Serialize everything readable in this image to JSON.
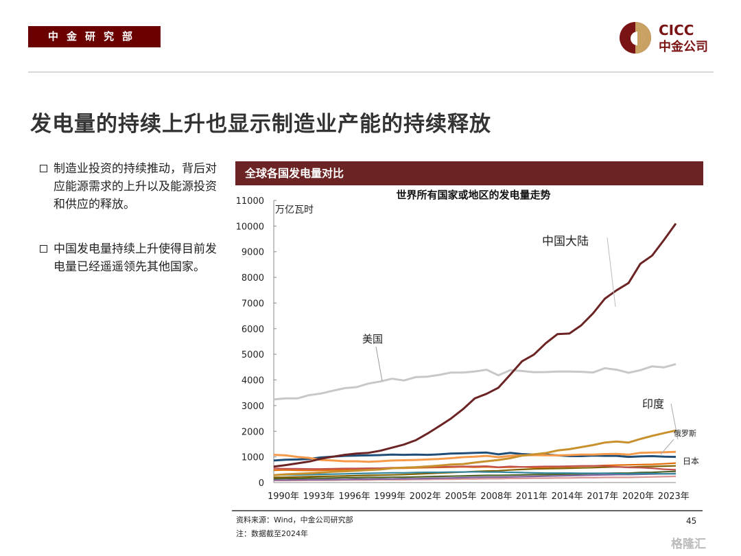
{
  "header": {
    "department": "中金研究部",
    "logo_text_en": "CICC",
    "logo_text_cn": "中金公司"
  },
  "title": "发电量的持续上升也显示制造业产能的持续释放",
  "bullets": [
    {
      "text": "制造业投资的持续推动，背后对应能源需求的上升以及能源投资和供应的释放。"
    },
    {
      "text": "中国发电量持续上升使得目前发电量已经遥遥领先其他国家。"
    }
  ],
  "chart_section_title": "全球各国发电量对比",
  "chart_data": {
    "type": "line",
    "title": "世界所有国家或地区的发电量走势",
    "ylabel": "万亿瓦时",
    "xlabel": "",
    "ylim": [
      0,
      11000
    ],
    "yticks": [
      0,
      1000,
      2000,
      3000,
      4000,
      5000,
      6000,
      7000,
      8000,
      9000,
      10000,
      11000
    ],
    "x": [
      1990,
      1991,
      1992,
      1993,
      1994,
      1995,
      1996,
      1997,
      1998,
      1999,
      2000,
      2001,
      2002,
      2003,
      2004,
      2005,
      2006,
      2007,
      2008,
      2009,
      2010,
      2011,
      2012,
      2013,
      2014,
      2015,
      2016,
      2017,
      2018,
      2019,
      2020,
      2021,
      2022,
      2023,
      2024
    ],
    "xtick_labels": [
      "1990年",
      "1993年",
      "1996年",
      "1999年",
      "2002年",
      "2005年",
      "2008年",
      "2011年",
      "2014年",
      "2017年",
      "2020年",
      "2023年"
    ],
    "grid": false,
    "series": [
      {
        "name": "中国大陆",
        "color": "#6b2323",
        "values": [
          620,
          680,
          750,
          820,
          930,
          1010,
          1080,
          1130,
          1160,
          1240,
          1360,
          1480,
          1650,
          1910,
          2200,
          2500,
          2860,
          3280,
          3460,
          3700,
          4210,
          4730,
          4990,
          5430,
          5790,
          5810,
          6130,
          6600,
          7170,
          7500,
          7780,
          8530,
          8850,
          9460,
          10100
        ]
      },
      {
        "name": "美国",
        "color": "#c8c8c8",
        "values": [
          3240,
          3280,
          3280,
          3410,
          3470,
          3580,
          3680,
          3720,
          3860,
          3940,
          4050,
          3980,
          4110,
          4130,
          4200,
          4290,
          4290,
          4330,
          4400,
          4180,
          4380,
          4350,
          4300,
          4310,
          4330,
          4330,
          4320,
          4290,
          4460,
          4400,
          4280,
          4380,
          4530,
          4490,
          4620
        ]
      },
      {
        "name": "印度",
        "color": "#c9902e",
        "values": [
          290,
          320,
          340,
          360,
          390,
          420,
          440,
          460,
          490,
          510,
          560,
          580,
          600,
          630,
          660,
          700,
          720,
          780,
          830,
          880,
          950,
          1050,
          1100,
          1150,
          1250,
          1300,
          1380,
          1460,
          1560,
          1600,
          1560,
          1700,
          1820,
          1930,
          2030
        ]
      },
      {
        "name": "俄罗斯",
        "color": "#f59a4a",
        "values": [
          1080,
          1060,
          1000,
          960,
          880,
          860,
          830,
          830,
          810,
          830,
          860,
          870,
          880,
          900,
          920,
          950,
          990,
          1010,
          1040,
          990,
          1040,
          1060,
          1070,
          1060,
          1060,
          1070,
          1090,
          1090,
          1110,
          1120,
          1090,
          1160,
          1170,
          1180,
          1200
        ]
      },
      {
        "name": "日本",
        "color": "#1f4e79",
        "values": [
          860,
          890,
          900,
          920,
          980,
          1010,
          1040,
          1050,
          1060,
          1070,
          1090,
          1080,
          1090,
          1080,
          1100,
          1130,
          1140,
          1160,
          1170,
          1100,
          1160,
          1110,
          1090,
          1090,
          1060,
          1030,
          1030,
          1050,
          1040,
          1040,
          1000,
          1020,
          1030,
          1010,
          1000
        ]
      },
      {
        "color": "#c0504d",
        "values": [
          550,
          540,
          540,
          530,
          530,
          540,
          550,
          550,
          560,
          560,
          580,
          580,
          590,
          600,
          610,
          620,
          630,
          630,
          640,
          600,
          630,
          610,
          620,
          630,
          630,
          640,
          650,
          650,
          650,
          610,
          590,
          580,
          560,
          520,
          500
        ]
      },
      {
        "color": "#e36c09",
        "values": [
          480,
          490,
          480,
          470,
          480,
          490,
          500,
          510,
          520,
          530,
          560,
          560,
          570,
          580,
          590,
          600,
          610,
          600,
          610,
          590,
          600,
          610,
          590,
          600,
          610,
          620,
          640,
          650,
          670,
          680,
          690,
          700,
          710,
          730,
          760
        ]
      },
      {
        "color": "#31859c",
        "values": [
          290,
          300,
          300,
          310,
          320,
          330,
          340,
          350,
          360,
          370,
          380,
          380,
          390,
          400,
          400,
          410,
          410,
          420,
          410,
          410,
          400,
          390,
          380,
          370,
          370,
          370,
          360,
          360,
          360,
          350,
          340,
          350,
          350,
          340,
          340
        ]
      },
      {
        "color": "#7f6000",
        "values": [
          200,
          210,
          220,
          230,
          240,
          250,
          260,
          270,
          280,
          290,
          300,
          310,
          330,
          350,
          370,
          390,
          410,
          430,
          450,
          460,
          490,
          510,
          530,
          540,
          550,
          560,
          570,
          580,
          600,
          610,
          600,
          620,
          630,
          640,
          650
        ]
      },
      {
        "color": "#4f6228",
        "values": [
          150,
          160,
          160,
          170,
          170,
          180,
          190,
          190,
          200,
          200,
          210,
          210,
          220,
          230,
          240,
          250,
          260,
          270,
          280,
          280,
          290,
          300,
          310,
          310,
          320,
          330,
          340,
          350,
          360,
          370,
          370,
          390,
          400,
          420,
          440
        ]
      },
      {
        "color": "#8064a2",
        "values": [
          100,
          100,
          110,
          110,
          110,
          120,
          120,
          130,
          130,
          140,
          140,
          150,
          150,
          160,
          170,
          180,
          190,
          200,
          210,
          210,
          220,
          230,
          240,
          250,
          260,
          270,
          280,
          290,
          300,
          310,
          310,
          320,
          330,
          340,
          350
        ]
      },
      {
        "color": "#d99694",
        "values": [
          80,
          80,
          80,
          90,
          90,
          90,
          100,
          100,
          100,
          110,
          110,
          110,
          120,
          120,
          130,
          130,
          140,
          140,
          150,
          150,
          160,
          160,
          170,
          170,
          180,
          180,
          190,
          190,
          200,
          200,
          200,
          210,
          220,
          230,
          240
        ]
      }
    ]
  },
  "footer": {
    "source": "资料来源：Wind，中金公司研究部",
    "note": "注：数据截至2024年",
    "page_number": "45",
    "watermark": "格隆汇"
  }
}
